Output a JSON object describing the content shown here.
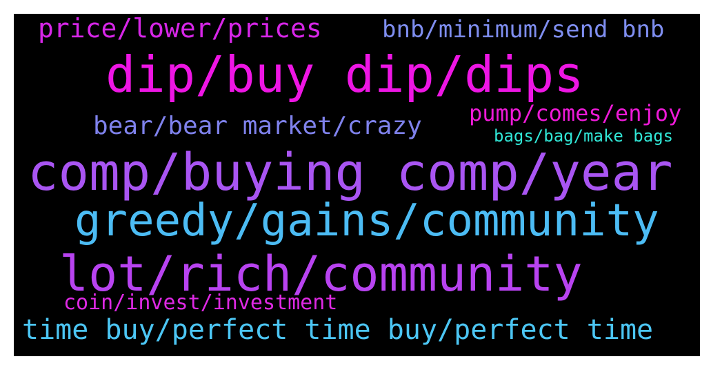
{
  "background_color": "#000000",
  "words": {
    "w1": {
      "text": "price/lower/prices",
      "color": "#d726e8"
    },
    "w2": {
      "text": "bnb/minimum/send bnb",
      "color": "#7f8ef0"
    },
    "w3": {
      "text": "dip/buy dip/dips",
      "color": "#ee16e4"
    },
    "w4": {
      "text": "bear/bear market/crazy",
      "color": "#7f82ec"
    },
    "w5": {
      "text": "pump/comes/enjoy",
      "color": "#ee1ad8"
    },
    "w6": {
      "text": "bags/bag/make bags",
      "color": "#31e6d6"
    },
    "w7": {
      "text": "comp/buying comp/year",
      "color": "#a955f2"
    },
    "w8": {
      "text": "greedy/gains/community",
      "color": "#4cbcf4"
    },
    "w9": {
      "text": "lot/rich/community",
      "color": "#b843f0"
    },
    "w10": {
      "text": "coin/invest/investment",
      "color": "#de29e4"
    },
    "w11": {
      "text": "time buy/perfect time buy/perfect time",
      "color": "#4cc6f4"
    }
  }
}
